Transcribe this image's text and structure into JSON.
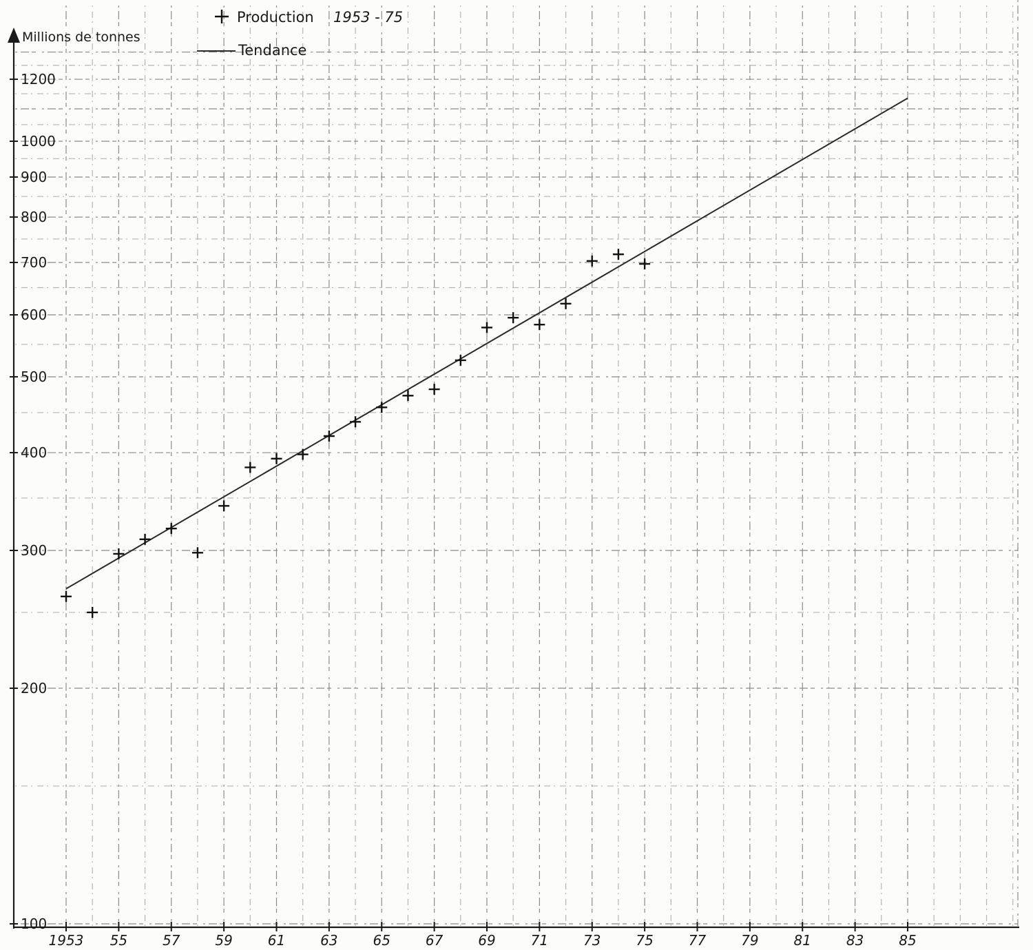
{
  "chart_data": {
    "type": "scatter",
    "title": "",
    "xlabel": "",
    "ylabel": "Millions de tonnes",
    "y_scale": "log",
    "ylim": [
      100,
      1300
    ],
    "xlim": [
      1953,
      1885
    ],
    "grid": true,
    "legend_position": "top-left",
    "legend": [
      {
        "marker": "+",
        "label": "Production",
        "note": "1953 - 75"
      },
      {
        "marker": "line",
        "label": "Tendance"
      }
    ],
    "x_tick_values": [
      1953,
      1955,
      1957,
      1959,
      1961,
      1963,
      1965,
      1967,
      1969,
      1971,
      1973,
      1975,
      1977,
      1979,
      1981,
      1983,
      1985
    ],
    "x_tick_labels": [
      "1953",
      "55",
      "57",
      "59",
      "61",
      "63",
      "65",
      "67",
      "69",
      "71",
      "73",
      "75",
      "77",
      "79",
      "81",
      "83",
      "85"
    ],
    "y_tick_values": [
      100,
      200,
      300,
      400,
      500,
      600,
      700,
      800,
      900,
      1000,
      1200
    ],
    "y_tick_labels": [
      "100",
      "200",
      "300",
      "400",
      "500",
      "600",
      "700",
      "800",
      "900",
      "1000",
      "1200"
    ],
    "series": [
      {
        "name": "Production",
        "kind": "points",
        "x": [
          1953,
          1954,
          1955,
          1956,
          1957,
          1958,
          1959,
          1960,
          1961,
          1962,
          1963,
          1964,
          1965,
          1966,
          1967,
          1968,
          1969,
          1970,
          1971,
          1972,
          1973,
          1974,
          1975
        ],
        "y": [
          262,
          250,
          297,
          310,
          320,
          298,
          342,
          383,
          393,
          398,
          420,
          438,
          457,
          473,
          482,
          525,
          578,
          595,
          583,
          620,
          703,
          717,
          697
        ]
      },
      {
        "name": "Tendance",
        "kind": "line",
        "x": [
          1953,
          1985
        ],
        "y": [
          268,
          1135
        ]
      }
    ]
  }
}
